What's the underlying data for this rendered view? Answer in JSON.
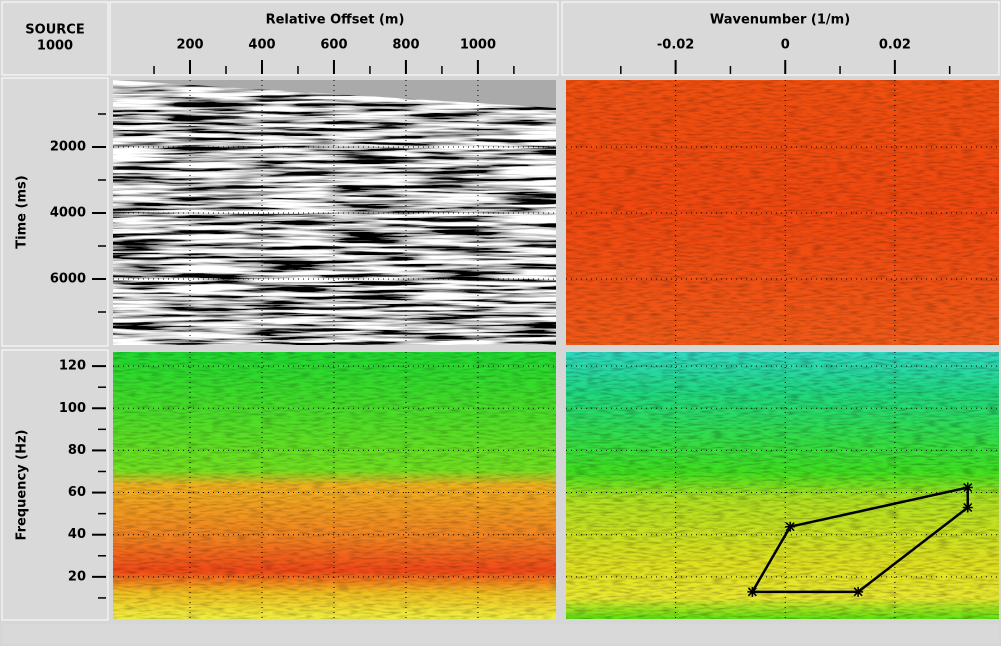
{
  "corner": {
    "line1": "SOURCE",
    "line2": "1000"
  },
  "offset_axis": {
    "title": "Relative Offset (m)",
    "lim": [
      -14,
      1217
    ],
    "ticks": [
      200,
      400,
      600,
      800,
      1000
    ],
    "minor_ticks": [
      100,
      300,
      500,
      700,
      900,
      1100
    ]
  },
  "wavenumber_axis": {
    "title": "Wavenumber (1/m)",
    "lim": [
      -0.04,
      0.039
    ],
    "ticks": [
      -0.02,
      0,
      0.02
    ],
    "minor_ticks": [
      -0.03,
      -0.01,
      0.01,
      0.03
    ]
  },
  "time_axis": {
    "title": "Time (ms)",
    "lim": [
      0,
      8000
    ],
    "ticks": [
      2000,
      4000,
      6000
    ],
    "minor_ticks": [
      1000,
      3000,
      5000,
      7000
    ]
  },
  "frequency_axis": {
    "title": "Frequency (Hz)",
    "lim": [
      0,
      126.7
    ],
    "ticks": [
      20,
      40,
      60,
      80,
      100,
      120
    ],
    "minor_ticks": [
      10,
      30,
      50,
      70,
      90,
      110
    ]
  },
  "mute_polygon": {
    "wavenumber": [
      -0.006,
      0.0009,
      0.0333,
      0.0333,
      0.0133
    ],
    "frequency": [
      12.9,
      43.8,
      62.4,
      52.9,
      12.9
    ]
  }
}
